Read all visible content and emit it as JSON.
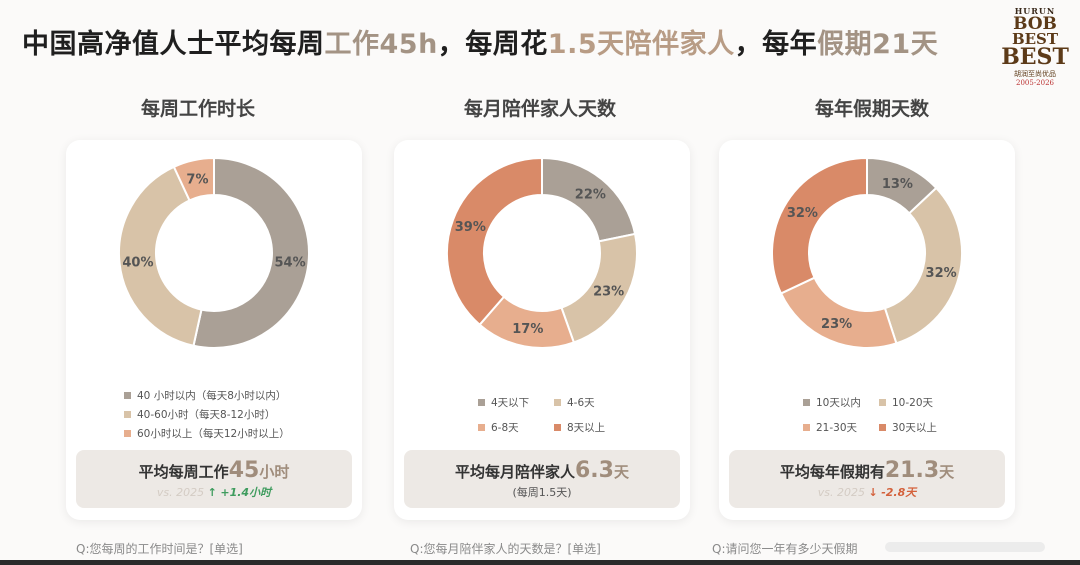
{
  "headline": {
    "p1": "中国高净值人士平均每周",
    "h1": "工作45h",
    "p2": "，每周花",
    "h2": "1.5天陪伴家人",
    "p3": "，每年",
    "h3": "假期21天"
  },
  "logo": {
    "line1": "HURUN",
    "line2": "BOB",
    "line3": "BEST",
    "line4": "BEST",
    "line5": "胡润至尚优品",
    "line6": "2005-2026"
  },
  "colors": {
    "grey_taupe": "#aaa096",
    "light_tan": "#d8c3a8",
    "peach": "#e7ae8e",
    "terracotta": "#d98a68",
    "accent_brown": "#a08d7c",
    "up_green": "#3f9c5e",
    "down_red": "#d4613b"
  },
  "chart_data": [
    {
      "type": "pie",
      "title": "每周工作时长",
      "categories": [
        "40 小时以内（每天8小时以内）",
        "40-60小时（每天8-12小时）",
        "60小时以上（每天12小时以上）"
      ],
      "values": [
        54,
        40,
        7
      ],
      "labels": [
        "54%",
        "40%",
        "7%"
      ],
      "colors": [
        "#aaa096",
        "#d8c3a8",
        "#e7ae8e"
      ],
      "legend_placement": "bottom",
      "summary": {
        "prefix": "平均每周工作",
        "value": "45",
        "unit": "小时",
        "vs": "vs. 2025",
        "delta_arrow": "↑",
        "delta": "+1.4小时",
        "sub_text": ""
      },
      "question": "Q:您每周的工作时间是？[单选]"
    },
    {
      "type": "pie",
      "title": "每月陪伴家人天数",
      "categories": [
        "4天以下",
        "4-6天",
        "6-8天",
        "8天以上"
      ],
      "values": [
        22,
        23,
        17,
        39
      ],
      "labels": [
        "22%",
        "23%",
        "17%",
        "39%"
      ],
      "colors": [
        "#aaa096",
        "#d8c3a8",
        "#e7ae8e",
        "#d98a68"
      ],
      "legend_placement": "bottom",
      "summary": {
        "prefix": "平均每月陪伴家人",
        "value": "6.3",
        "unit": "天",
        "vs": "",
        "delta_arrow": "",
        "delta": "",
        "sub_text": "(每周1.5天)"
      },
      "question": "Q:您每月陪伴家人的天数是？[单选]"
    },
    {
      "type": "pie",
      "title": "每年假期天数",
      "categories": [
        "10天以内",
        "10-20天",
        "21-30天",
        "30天以上"
      ],
      "values": [
        13,
        32,
        23,
        32
      ],
      "labels": [
        "13%",
        "32%",
        "23%",
        "32%"
      ],
      "colors": [
        "#aaa096",
        "#d8c3a8",
        "#e7ae8e",
        "#d98a68"
      ],
      "legend_placement": "bottom",
      "summary": {
        "prefix": "平均每年假期有",
        "value": "21.3",
        "unit": "天",
        "vs": "vs. 2025",
        "delta_arrow": "↓",
        "delta": "-2.8天",
        "sub_text": ""
      },
      "question": "Q:请问您一年有多少天假期"
    }
  ]
}
